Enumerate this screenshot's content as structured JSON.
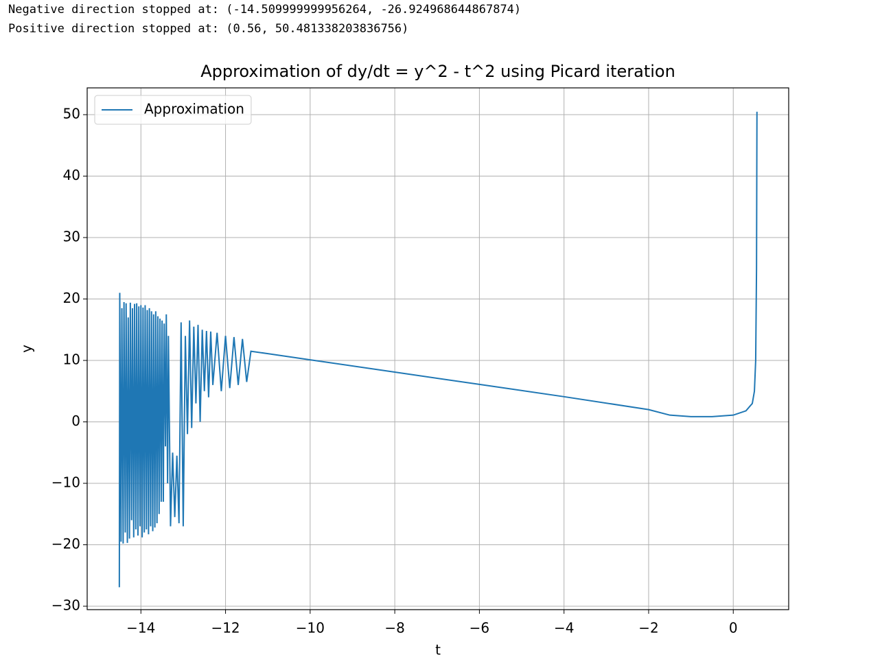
{
  "output_lines": [
    "Negative direction stopped at: (-14.509999999956264, -26.924968644867874)",
    "Positive direction stopped at: (0.56, 50.481338203836756)"
  ],
  "chart_data": {
    "type": "line",
    "title": "Approximation of dy/dt = y^2 - t^2 using Picard iteration",
    "x_label": "t",
    "y_label": "y",
    "grid": true,
    "legend": "upper left",
    "xlim": [
      -15.27,
      1.31
    ],
    "ylim": [
      -30.56,
      54.36
    ],
    "xticks": [
      {
        "value": -14,
        "label": "−14"
      },
      {
        "value": -12,
        "label": "−12"
      },
      {
        "value": -10,
        "label": "−10"
      },
      {
        "value": -8,
        "label": "−8"
      },
      {
        "value": -6,
        "label": "−6"
      },
      {
        "value": -4,
        "label": "−4"
      },
      {
        "value": -2,
        "label": "−2"
      },
      0
    ],
    "yticks": [
      {
        "value": -30,
        "label": "−30"
      },
      {
        "value": -20,
        "label": "−20"
      },
      {
        "value": -10,
        "label": "−10"
      },
      0,
      10,
      20,
      30,
      40,
      50
    ],
    "x": [
      -14.51,
      -14.5,
      -14.47,
      -14.45,
      -14.42,
      -14.4,
      -14.37,
      -14.35,
      -14.32,
      -14.3,
      -14.27,
      -14.25,
      -14.22,
      -14.2,
      -14.17,
      -14.15,
      -14.12,
      -14.1,
      -14.07,
      -14.05,
      -14.02,
      -14.0,
      -13.97,
      -13.95,
      -13.92,
      -13.9,
      -13.87,
      -13.85,
      -13.82,
      -13.8,
      -13.77,
      -13.75,
      -13.72,
      -13.7,
      -13.67,
      -13.65,
      -13.62,
      -13.6,
      -13.57,
      -13.55,
      -13.52,
      -13.5,
      -13.47,
      -13.45,
      -13.42,
      -13.4,
      -13.37,
      -13.35,
      -13.3,
      -13.25,
      -13.2,
      -13.15,
      -13.1,
      -13.05,
      -13.0,
      -12.95,
      -12.9,
      -12.85,
      -12.8,
      -12.75,
      -12.7,
      -12.65,
      -12.6,
      -12.55,
      -12.5,
      -12.45,
      -12.4,
      -12.35,
      -12.3,
      -12.2,
      -12.1,
      -12.0,
      -11.9,
      -11.8,
      -11.7,
      -11.6,
      -11.5,
      -11.4,
      -11.0,
      -10.0,
      -8.0,
      -6.0,
      -4.0,
      -2.0,
      -1.5,
      -1.0,
      -0.5,
      0.0,
      0.3,
      0.45,
      0.5,
      0.53,
      0.55,
      0.56
    ],
    "series": [
      {
        "name": "Approximation",
        "color": "#1f77b4",
        "values": [
          -26.92,
          21.0,
          -19.5,
          18.5,
          -19.8,
          19.5,
          -18.0,
          19.3,
          -19.7,
          17.0,
          -19.0,
          19.4,
          -16.0,
          18.5,
          -18.8,
          19.2,
          -17.5,
          19.3,
          -18.5,
          18.8,
          -17.0,
          19.0,
          -18.8,
          18.6,
          -18.0,
          19.0,
          -17.5,
          18.2,
          -18.3,
          18.5,
          -17.0,
          18.0,
          -17.8,
          17.5,
          -17.2,
          18.0,
          -16.5,
          17.2,
          -15.0,
          16.8,
          -13.0,
          16.5,
          -13.0,
          16.0,
          -4.0,
          17.5,
          -10.0,
          14.0,
          -17.0,
          -5.0,
          -15.5,
          -5.5,
          -16.5,
          16.2,
          -17.0,
          14.0,
          -2.0,
          16.5,
          -1.0,
          15.5,
          3.0,
          15.8,
          0.0,
          15.0,
          5.0,
          14.8,
          4.0,
          14.7,
          6.0,
          14.5,
          5.0,
          14.0,
          5.5,
          13.8,
          6.0,
          13.5,
          6.5,
          11.5,
          11.1,
          10.1,
          8.1,
          6.1,
          4.1,
          2.0,
          1.1,
          0.85,
          0.85,
          1.1,
          1.8,
          3.0,
          5.0,
          10.0,
          25.0,
          50.48
        ]
      }
    ]
  }
}
